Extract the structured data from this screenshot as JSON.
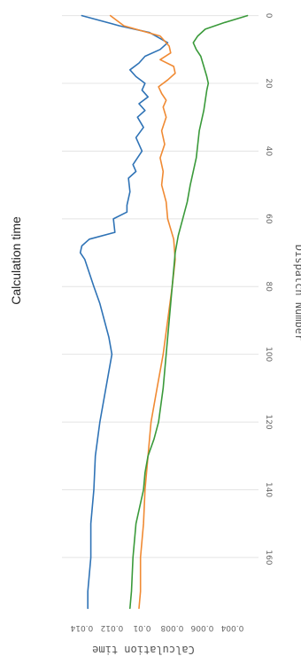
{
  "chart_data": {
    "type": "line",
    "title": "Calculation time",
    "xlabel": "Dispatch Number",
    "ylabel": "Calculation time",
    "xlim": [
      -2,
      176
    ],
    "ylim": [
      0.0025,
      0.0152
    ],
    "x_ticks": [
      "0",
      "20",
      "40",
      "60",
      "80",
      "100",
      "120",
      "140",
      "160"
    ],
    "y_ticks": [
      "0.004",
      "0.006",
      "0.008",
      "0.01",
      "0.012",
      "0.014"
    ],
    "grid": true,
    "orientation": "rotated 90 degrees (x axis runs top to bottom, y axis runs right to left)",
    "series": [
      {
        "color": "#2f73b6",
        "x": [
          0,
          3,
          5,
          8,
          10,
          12,
          14,
          16,
          18,
          20,
          22,
          24,
          26,
          28,
          30,
          33,
          36,
          40,
          44,
          46,
          48,
          52,
          56,
          58,
          60,
          64,
          66,
          68,
          70,
          72,
          76,
          80,
          85,
          90,
          95,
          100,
          110,
          120,
          130,
          140,
          150,
          160,
          170,
          175
        ],
        "y": [
          0.014,
          0.0115,
          0.0095,
          0.0083,
          0.0088,
          0.0098,
          0.0102,
          0.0108,
          0.0104,
          0.0098,
          0.01,
          0.0096,
          0.0102,
          0.0098,
          0.0103,
          0.0099,
          0.0104,
          0.01,
          0.0106,
          0.0104,
          0.0109,
          0.0108,
          0.011,
          0.011,
          0.0119,
          0.0118,
          0.0135,
          0.014,
          0.0141,
          0.0138,
          0.0135,
          0.0132,
          0.0128,
          0.0125,
          0.0122,
          0.012,
          0.0124,
          0.0128,
          0.0131,
          0.0132,
          0.0134,
          0.0134,
          0.0136,
          0.0136
        ]
      },
      {
        "color": "#f08a33",
        "x": [
          0,
          3,
          6,
          9,
          11,
          13,
          15,
          17,
          19,
          21,
          23,
          25,
          27,
          30,
          34,
          38,
          42,
          46,
          50,
          55,
          60,
          66,
          72,
          80,
          90,
          100,
          110,
          120,
          130,
          140,
          150,
          160,
          170,
          175
        ],
        "y": [
          0.0121,
          0.0112,
          0.0088,
          0.0082,
          0.0081,
          0.0088,
          0.0079,
          0.0078,
          0.0083,
          0.0089,
          0.0087,
          0.0084,
          0.0086,
          0.0084,
          0.0087,
          0.0085,
          0.0088,
          0.0086,
          0.0087,
          0.0084,
          0.0083,
          0.0079,
          0.0078,
          0.008,
          0.0083,
          0.0086,
          0.009,
          0.0094,
          0.0096,
          0.0098,
          0.0099,
          0.0101,
          0.0101,
          0.0102
        ],
        "y_note": ""
      },
      {
        "color": "#3a9a3a",
        "x": [
          0,
          2,
          4,
          6,
          8,
          10,
          12,
          15,
          18,
          20,
          22,
          25,
          28,
          30,
          34,
          38,
          42,
          46,
          50,
          55,
          60,
          65,
          70,
          75,
          80,
          85,
          90,
          95,
          100,
          110,
          120,
          125,
          130,
          135,
          140,
          150,
          160,
          170,
          175
        ],
        "y": [
          0.003,
          0.0045,
          0.0058,
          0.0063,
          0.0066,
          0.0064,
          0.0061,
          0.0059,
          0.0057,
          0.0056,
          0.0057,
          0.0058,
          0.0059,
          0.006,
          0.0062,
          0.0063,
          0.0064,
          0.0066,
          0.0068,
          0.007,
          0.0073,
          0.0076,
          0.0078,
          0.0079,
          0.008,
          0.0081,
          0.0082,
          0.0083,
          0.0084,
          0.0086,
          0.0089,
          0.0092,
          0.0096,
          0.0098,
          0.0099,
          0.0104,
          0.0106,
          0.0107,
          0.0108
        ]
      }
    ]
  }
}
